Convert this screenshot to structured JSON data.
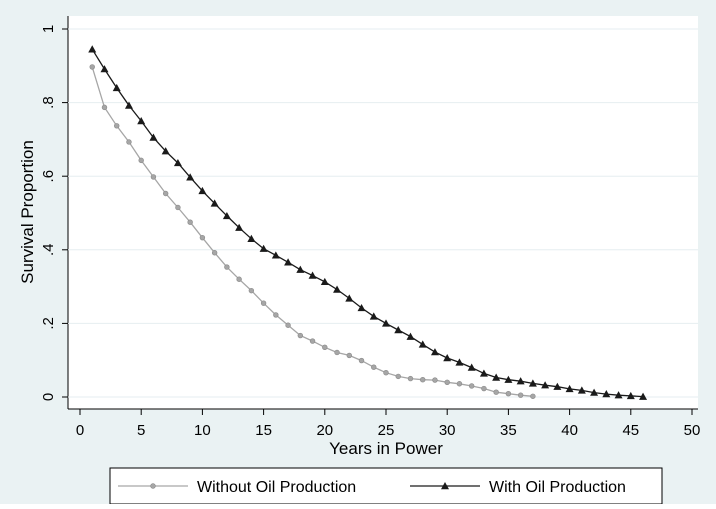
{
  "chart_data": {
    "type": "line",
    "title": "",
    "xlabel": "Years in Power",
    "ylabel": "Survival Proportion",
    "xlim": [
      0,
      50
    ],
    "ylim": [
      0,
      1
    ],
    "x_ticks": [
      "0",
      "5",
      "10",
      "15",
      "20",
      "25",
      "30",
      "35",
      "40",
      "45",
      "50"
    ],
    "y_ticks": [
      "0",
      ".2",
      ".4",
      ".6",
      ".8",
      "1"
    ],
    "grid": "horizontal",
    "legend_position": "bottom",
    "series": [
      {
        "name": "Without Oil Production",
        "color": "#a6a6a6",
        "marker": "circle",
        "x": [
          1,
          2,
          3,
          4,
          5,
          6,
          7,
          8,
          9,
          10,
          11,
          12,
          13,
          14,
          15,
          16,
          17,
          18,
          19,
          20,
          21,
          22,
          23,
          24,
          25,
          26,
          27,
          28,
          29,
          30,
          31,
          32,
          33,
          34,
          35,
          36,
          37
        ],
        "y": [
          0.897,
          0.787,
          0.737,
          0.693,
          0.643,
          0.598,
          0.553,
          0.515,
          0.475,
          0.433,
          0.392,
          0.353,
          0.32,
          0.289,
          0.255,
          0.223,
          0.195,
          0.167,
          0.152,
          0.135,
          0.121,
          0.113,
          0.099,
          0.081,
          0.066,
          0.056,
          0.05,
          0.047,
          0.046,
          0.04,
          0.036,
          0.03,
          0.023,
          0.013,
          0.009,
          0.005,
          0.002
        ]
      },
      {
        "name": "With Oil Production",
        "color": "#1a1a1a",
        "marker": "triangle",
        "x": [
          1,
          2,
          3,
          4,
          5,
          6,
          7,
          8,
          9,
          10,
          11,
          12,
          13,
          14,
          15,
          16,
          17,
          18,
          19,
          20,
          21,
          22,
          23,
          24,
          25,
          26,
          27,
          28,
          29,
          30,
          31,
          32,
          33,
          34,
          35,
          36,
          37,
          38,
          39,
          40,
          41,
          42,
          43,
          44,
          45,
          46
        ],
        "y": [
          0.945,
          0.891,
          0.84,
          0.792,
          0.75,
          0.705,
          0.668,
          0.636,
          0.597,
          0.56,
          0.526,
          0.492,
          0.46,
          0.43,
          0.403,
          0.385,
          0.366,
          0.346,
          0.33,
          0.313,
          0.292,
          0.268,
          0.242,
          0.219,
          0.2,
          0.182,
          0.164,
          0.143,
          0.122,
          0.106,
          0.094,
          0.08,
          0.064,
          0.053,
          0.047,
          0.043,
          0.037,
          0.032,
          0.028,
          0.022,
          0.018,
          0.012,
          0.008,
          0.005,
          0.003,
          0.001
        ]
      }
    ]
  }
}
